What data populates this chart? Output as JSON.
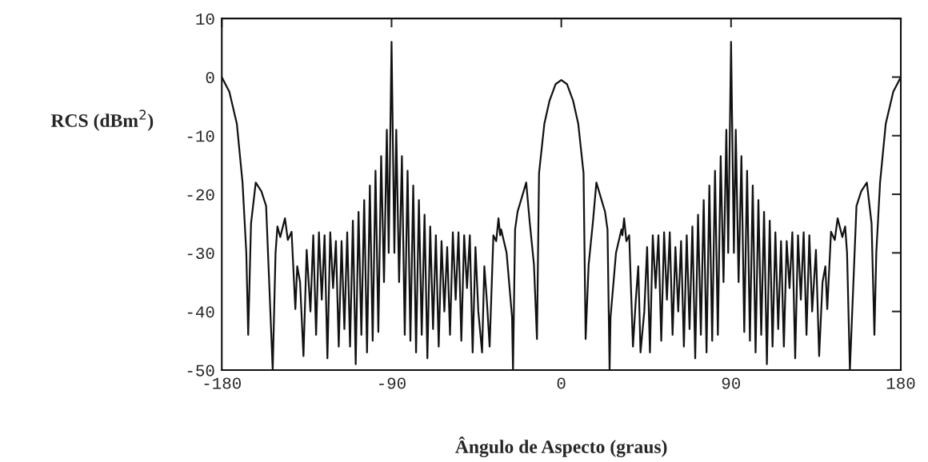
{
  "chart_data": {
    "type": "line",
    "xlabel": "Ângulo de Aspecto (graus)",
    "ylabel": "RCS (dBm$^{2}$)",
    "xlim": [
      -180,
      180
    ],
    "xticks": [
      -180,
      -90,
      0,
      90,
      180
    ],
    "ylim": [
      -50,
      10
    ],
    "yticks": [
      -50,
      -40,
      -30,
      -20,
      -10,
      0,
      10
    ],
    "grid": false,
    "legend": false,
    "marker": "none",
    "line_style": "solid",
    "series": [
      {
        "color": "#111111",
        "x": [
          -180,
          -176,
          -172,
          -169,
          -167,
          -166,
          -164.5,
          -162,
          -159,
          -156.5,
          -155.5,
          -154,
          -153,
          -151.5,
          -150.5,
          -149,
          -146.5,
          -145,
          -143,
          -141,
          -140,
          -138.5,
          -136.7,
          -135,
          -133,
          -131.5,
          -130,
          -128.5,
          -127,
          -125.5,
          -124,
          -122.5,
          -121,
          -119.5,
          -118,
          -116.5,
          -115,
          -113.5,
          -112,
          -110.5,
          -109,
          -107.5,
          -106,
          -104.5,
          -103,
          -101.5,
          -100,
          -98.5,
          -97,
          -95.5,
          -94,
          -92.5,
          -91.5,
          -90,
          -88.5,
          -87.5,
          -86,
          -84.5,
          -83,
          -81.5,
          -80,
          -78.5,
          -77,
          -75.5,
          -74,
          -72.5,
          -71,
          -69.5,
          -68,
          -66.5,
          -65,
          -63.5,
          -62,
          -60.5,
          -59,
          -57.5,
          -56,
          -54.5,
          -53,
          -51.5,
          -50,
          -48.5,
          -47,
          -45.5,
          -44,
          -42,
          -40.8,
          -39.5,
          -38,
          -36,
          -34.5,
          -33.3,
          -32.4,
          -31.9,
          -29,
          -26.1,
          -25.6,
          -24.5,
          -23.2,
          -18.6,
          -16.8,
          -14.5,
          -12.9,
          -11.8,
          -9,
          -6.3,
          -3,
          0,
          3,
          6.3,
          9,
          11.8,
          12.9,
          14.5,
          16.8,
          18.6,
          23.2,
          24.5,
          25.6,
          26.1,
          29,
          31.9,
          32.4,
          33.3,
          34.5,
          36,
          38,
          39.5,
          40.8,
          42,
          44,
          45.5,
          47,
          48.5,
          50,
          51.5,
          53,
          54.5,
          56,
          57.5,
          59,
          60.5,
          62,
          63.5,
          65,
          66.5,
          68,
          69.5,
          71,
          72.5,
          74,
          75.5,
          77,
          78.5,
          80,
          81.5,
          83,
          84.5,
          86,
          87.5,
          88.5,
          90,
          91.5,
          92.5,
          94,
          95.5,
          97,
          98.5,
          100,
          101.5,
          103,
          104.5,
          106,
          107.5,
          109,
          110.5,
          112,
          113.5,
          115,
          116.5,
          118,
          119.5,
          121,
          122.5,
          124,
          125.5,
          127,
          128.5,
          130,
          131.5,
          133,
          135,
          136.7,
          138.5,
          140,
          141,
          143,
          145,
          146.5,
          149,
          150.5,
          151.5,
          153,
          154,
          155.5,
          156.5,
          159,
          162,
          164.5,
          166,
          167,
          169,
          172,
          176,
          180
        ],
        "values": [
          0,
          -2.5,
          -8,
          -18,
          -30,
          -44,
          -25,
          -18,
          -19.5,
          -22,
          -30,
          -42,
          -50,
          -30,
          -25.5,
          -27.3,
          -24.1,
          -27.8,
          -26.4,
          -39.6,
          -32.3,
          -35,
          -47.6,
          -29.5,
          -40,
          -27,
          -44,
          -26.5,
          -38,
          -27,
          -48,
          -26.5,
          -36,
          -28,
          -46,
          -28,
          -43,
          -26.5,
          -46,
          -24.5,
          -49,
          -23,
          -44,
          -21,
          -47,
          -18.5,
          -45,
          -16,
          -43.5,
          -13.5,
          -35,
          -9,
          -30,
          6,
          -30,
          -9,
          -35,
          -13.5,
          -44,
          -16,
          -45,
          -18.5,
          -47,
          -21,
          -44,
          -23.5,
          -48,
          -25.5,
          -43,
          -27,
          -46,
          -28,
          -40,
          -29,
          -44,
          -26.5,
          -38,
          -26.5,
          -45,
          -27,
          -36,
          -27,
          -47,
          -29,
          -40,
          -47,
          -32.3,
          -38,
          -46,
          -27,
          -28,
          -24.1,
          -27,
          -26,
          -30,
          -41,
          -50,
          -26,
          -23,
          -18,
          -24.6,
          -32,
          -44.7,
          -16.4,
          -8,
          -4.1,
          -1.2,
          -0.5,
          -1.2,
          -4.1,
          -8,
          -16.4,
          -44.7,
          -32,
          -24.6,
          -18,
          -23,
          -26,
          -50,
          -41,
          -30,
          -26,
          -27,
          -24.1,
          -28,
          -27,
          -46,
          -38,
          -32.3,
          -47,
          -40,
          -29,
          -47,
          -27,
          -36,
          -27,
          -45,
          -26.5,
          -38,
          -26.5,
          -44,
          -29,
          -40,
          -28,
          -46,
          -27,
          -43,
          -25.5,
          -48,
          -23.5,
          -44,
          -21,
          -47,
          -18.5,
          -45,
          -16,
          -44,
          -13.5,
          -35,
          -9,
          -30,
          6,
          -30,
          -9,
          -35,
          -13.5,
          -43.5,
          -16,
          -45,
          -18.5,
          -47,
          -21,
          -44,
          -23,
          -49,
          -24.5,
          -46,
          -26.5,
          -43,
          -28,
          -46,
          -28,
          -36,
          -26.5,
          -48,
          -27,
          -38,
          -26.5,
          -44,
          -27,
          -40,
          -29.5,
          -47.6,
          -35,
          -32.3,
          -39.6,
          -26.4,
          -27.8,
          -24.1,
          -27.3,
          -25.5,
          -30,
          -50,
          -42,
          -30,
          -22,
          -19.5,
          -18,
          -25,
          -44,
          -30,
          -18,
          -8,
          -2.5,
          0
        ]
      }
    ]
  }
}
